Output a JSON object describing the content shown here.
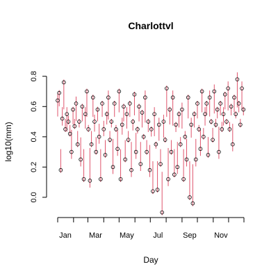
{
  "chart_data": {
    "type": "scatter",
    "title": "Charlottvl",
    "xlabel": "Day",
    "ylabel": "log10(mm)",
    "xlim": [
      1,
      365
    ],
    "ylim": [
      -0.12,
      0.9
    ],
    "y_ticks": [
      0.0,
      0.2,
      0.4,
      0.6,
      0.8
    ],
    "y_tick_labels": [
      "0.0",
      "0.2",
      "0.4",
      "0.6",
      "0.8"
    ],
    "x_ticks": [
      1,
      32,
      60,
      91,
      121,
      152,
      182,
      213,
      244,
      274,
      305,
      335,
      365
    ],
    "x_tick_labels": [
      {
        "day": 16,
        "label": "Jan"
      },
      {
        "day": 75,
        "label": "Mar"
      },
      {
        "day": 136,
        "label": "May"
      },
      {
        "day": 197,
        "label": "Jul"
      },
      {
        "day": 259,
        "label": "Sep"
      },
      {
        "day": 320,
        "label": "Nov"
      }
    ],
    "grid": false,
    "colors": {
      "points": "#000000",
      "stems": "#DF536B"
    },
    "series": [
      {
        "style": "points",
        "x": [
          1,
          4,
          7,
          10,
          13,
          16,
          19,
          22,
          25,
          28,
          31,
          34,
          37,
          40,
          43,
          46,
          49,
          52,
          55,
          58,
          61,
          64,
          67,
          70,
          73,
          76,
          79,
          82,
          85,
          88,
          91,
          94,
          97,
          100,
          103,
          106,
          109,
          112,
          115,
          118,
          121,
          124,
          127,
          130,
          133,
          136,
          139,
          142,
          145,
          148,
          151,
          154,
          157,
          160,
          163,
          166,
          169,
          172,
          175,
          178,
          181,
          184,
          187,
          190,
          193,
          196,
          199,
          202,
          205,
          208,
          211,
          214,
          217,
          220,
          223,
          226,
          229,
          232,
          235,
          238,
          241,
          244,
          247,
          250,
          253,
          256,
          259,
          262,
          265,
          268,
          271,
          274,
          277,
          280,
          283,
          286,
          289,
          292,
          295,
          298,
          301,
          304,
          307,
          310,
          313,
          316,
          319,
          322,
          325,
          328,
          331,
          334,
          337,
          340,
          343,
          346,
          349,
          352,
          355,
          358,
          361,
          364
        ],
        "y": [
          0.64,
          0.69,
          0.18,
          0.52,
          0.76,
          0.45,
          0.55,
          0.5,
          0.42,
          0.3,
          0.58,
          0.47,
          0.62,
          0.35,
          0.5,
          0.25,
          0.6,
          0.12,
          0.55,
          0.7,
          0.45,
          0.11,
          0.35,
          0.66,
          0.5,
          0.3,
          0.58,
          0.4,
          0.12,
          0.62,
          0.45,
          0.28,
          0.55,
          0.66,
          0.38,
          0.5,
          0.2,
          0.62,
          0.45,
          0.32,
          0.7,
          0.12,
          0.48,
          0.6,
          0.25,
          0.55,
          0.38,
          0.62,
          0.18,
          0.5,
          0.68,
          0.3,
          0.45,
          0.6,
          0.22,
          0.56,
          0.4,
          0.66,
          0.3,
          0.5,
          0.18,
          0.45,
          0.04,
          0.55,
          0.35,
          0.05,
          0.48,
          0.22,
          -0.1,
          0.5,
          0.38,
          0.72,
          0.12,
          0.58,
          0.3,
          0.66,
          0.15,
          0.48,
          0.2,
          0.55,
          0.35,
          0.58,
          0.12,
          0.4,
          0.25,
          0.66,
          0.0,
          0.48,
          -0.04,
          0.55,
          0.25,
          0.62,
          0.45,
          0.32,
          0.7,
          0.4,
          0.55,
          0.62,
          0.28,
          0.66,
          0.5,
          0.38,
          0.7,
          0.48,
          0.58,
          0.3,
          0.62,
          0.45,
          0.55,
          0.68,
          0.5,
          0.72,
          0.45,
          0.6,
          0.35,
          0.66,
          0.55,
          0.78,
          0.62,
          0.48,
          0.72,
          0.58
        ]
      },
      {
        "style": "stems",
        "x": [
          1,
          4,
          7,
          10,
          13,
          16,
          19,
          22,
          25,
          28,
          31,
          34,
          37,
          40,
          43,
          46,
          49,
          52,
          55,
          58,
          61,
          64,
          67,
          70,
          73,
          76,
          79,
          82,
          85,
          88,
          91,
          94,
          97,
          100,
          103,
          106,
          109,
          112,
          115,
          118,
          121,
          124,
          127,
          130,
          133,
          136,
          139,
          142,
          145,
          148,
          151,
          154,
          157,
          160,
          163,
          166,
          169,
          172,
          175,
          178,
          181,
          184,
          187,
          190,
          193,
          196,
          199,
          202,
          205,
          208,
          211,
          214,
          217,
          220,
          223,
          226,
          229,
          232,
          235,
          238,
          241,
          244,
          247,
          250,
          253,
          256,
          259,
          262,
          265,
          268,
          271,
          274,
          277,
          280,
          283,
          286,
          289,
          292,
          295,
          298,
          301,
          304,
          307,
          310,
          313,
          316,
          319,
          322,
          325,
          328,
          331,
          334,
          337,
          340,
          343,
          346,
          349,
          352,
          355,
          358,
          361,
          364
        ],
        "y": [
          0.58,
          0.62,
          0.3,
          0.55,
          0.6,
          0.5,
          0.48,
          0.52,
          0.46,
          0.4,
          0.5,
          0.5,
          0.55,
          0.42,
          0.48,
          0.35,
          0.52,
          0.3,
          0.5,
          0.55,
          0.46,
          0.28,
          0.42,
          0.55,
          0.48,
          0.38,
          0.52,
          0.44,
          0.3,
          0.55,
          0.46,
          0.36,
          0.5,
          0.56,
          0.42,
          0.48,
          0.34,
          0.55,
          0.46,
          0.4,
          0.58,
          0.3,
          0.46,
          0.52,
          0.36,
          0.5,
          0.42,
          0.55,
          0.32,
          0.46,
          0.56,
          0.38,
          0.44,
          0.52,
          0.32,
          0.48,
          0.4,
          0.54,
          0.36,
          0.45,
          0.3,
          0.42,
          0.22,
          0.45,
          0.34,
          0.22,
          0.42,
          0.3,
          0.15,
          0.44,
          0.38,
          0.55,
          0.28,
          0.5,
          0.36,
          0.52,
          0.3,
          0.45,
          0.32,
          0.48,
          0.38,
          0.5,
          0.3,
          0.42,
          0.34,
          0.54,
          0.22,
          0.44,
          0.2,
          0.48,
          0.34,
          0.54,
          0.46,
          0.4,
          0.58,
          0.44,
          0.52,
          0.56,
          0.38,
          0.58,
          0.5,
          0.44,
          0.6,
          0.5,
          0.54,
          0.42,
          0.56,
          0.48,
          0.52,
          0.6,
          0.5,
          0.62,
          0.48,
          0.56,
          0.44,
          0.58,
          0.54,
          0.64,
          0.58,
          0.5,
          0.62,
          0.56
        ]
      }
    ]
  }
}
